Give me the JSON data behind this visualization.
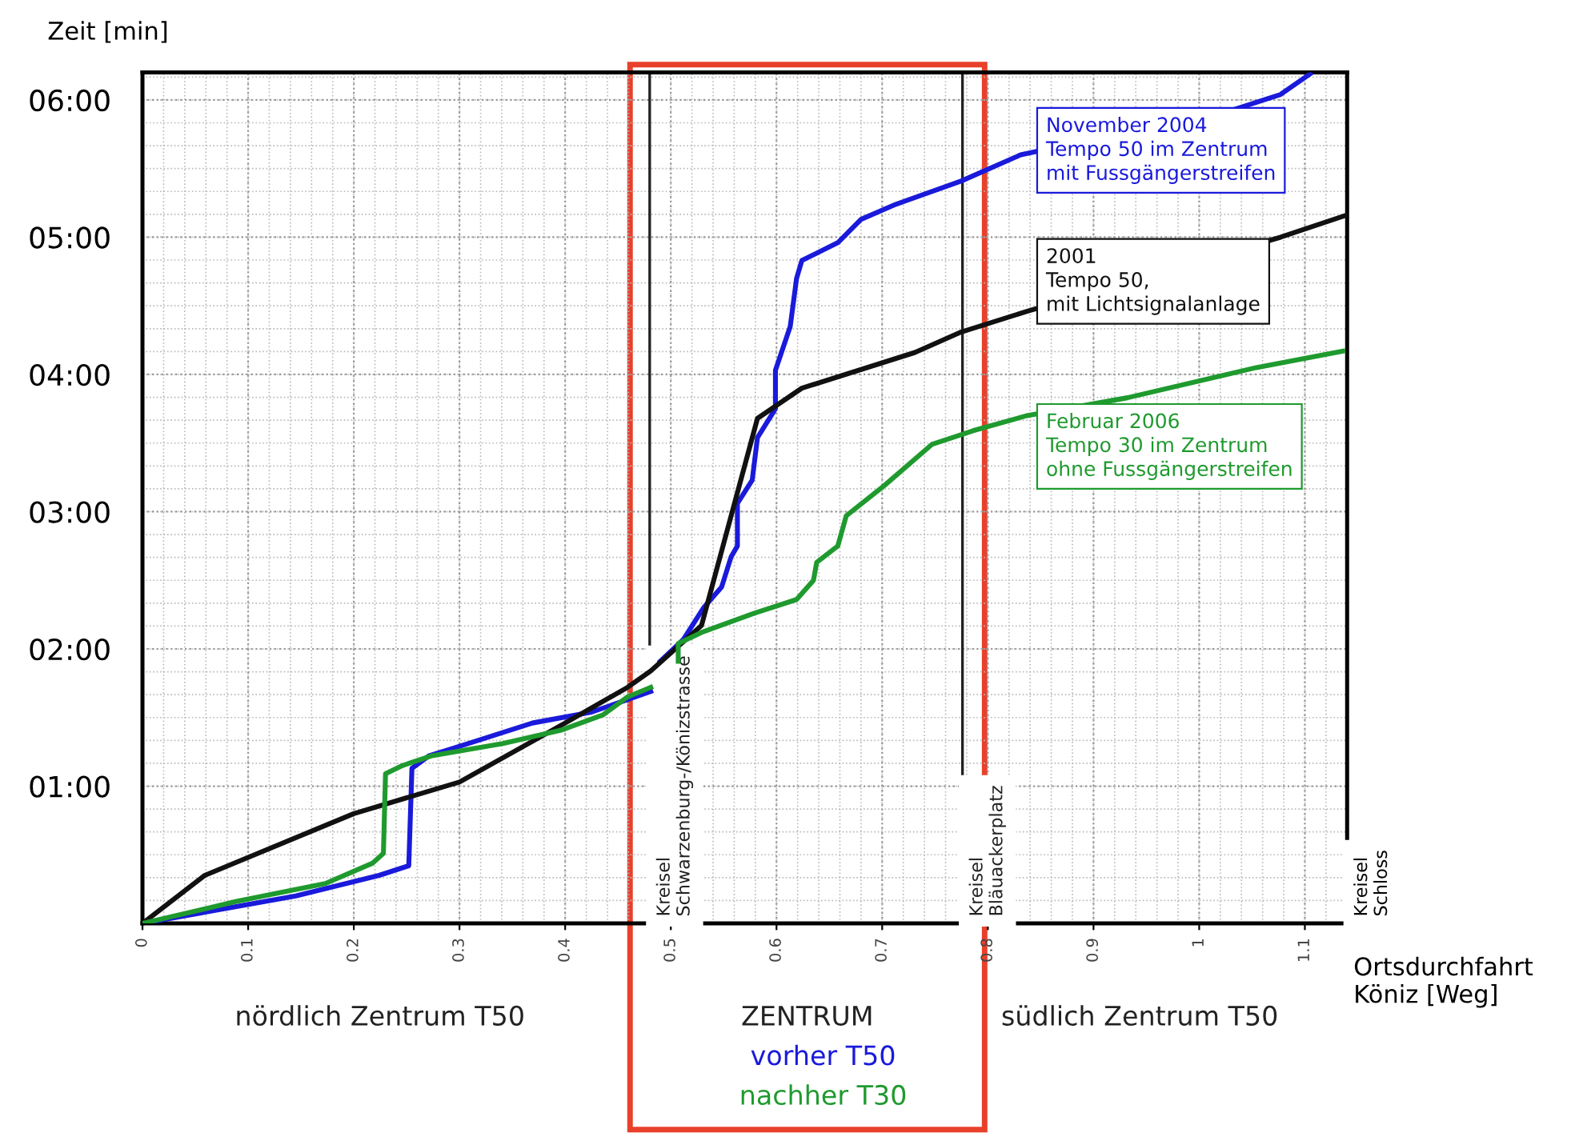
{
  "chart_data": {
    "type": "line",
    "ylabel": "Zeit [min]",
    "xlabel": "Ortsdurchfahrt\nKöniz [Weg]",
    "xlim": [
      0,
      1.14
    ],
    "ylim": [
      0,
      6.2
    ],
    "xticks": [
      0,
      0.1,
      0.2,
      0.3,
      0.4,
      0.5,
      0.6,
      0.7,
      0.8,
      0.9,
      1,
      1.1
    ],
    "yticks": [
      {
        "value": 0,
        "label": null
      },
      {
        "value": 1,
        "label": "01:00"
      },
      {
        "value": 2,
        "label": "02:00"
      },
      {
        "value": 3,
        "label": "03:00"
      },
      {
        "value": 4,
        "label": "04:00"
      },
      {
        "value": 5,
        "label": "05:00"
      },
      {
        "value": 6,
        "label": "06:00"
      }
    ],
    "grid": true,
    "legend": false,
    "marker": "none",
    "line_style": "solid",
    "series": [
      {
        "name": "November 2004\nTempo 50 im Zentrum\nmit Fussgängerstreifen",
        "color": "#1a1adb",
        "x": [
          0,
          0.145,
          0.224,
          0.252,
          0.255,
          0.271,
          0.308,
          0.369,
          0.425,
          0.459,
          0.481,
          0.485,
          0.49,
          0.512,
          0.531,
          0.548,
          0.557,
          0.563,
          0.563,
          0.577,
          0.582,
          0.599,
          0.599,
          0.613,
          0.619,
          0.624,
          0.658,
          0.68,
          0.713,
          0.775,
          0.831,
          1.033,
          1.077,
          1.105
        ],
        "values": [
          0,
          0.2,
          0.35,
          0.42,
          1.13,
          1.22,
          1.31,
          1.46,
          1.54,
          1.63,
          1.69,
          null,
          1.91,
          2.07,
          2.3,
          2.45,
          2.67,
          2.75,
          3.06,
          3.23,
          3.54,
          3.75,
          4.03,
          4.35,
          4.7,
          4.83,
          4.96,
          5.13,
          5.24,
          5.41,
          5.6,
          5.93,
          6.04,
          6.19
        ]
      },
      {
        "name": "2001\nTempo 50,\nmit Lichtsignalanlage",
        "color": "#111111",
        "x": [
          0,
          0.059,
          0.2,
          0.3,
          0.4,
          0.459,
          0.481,
          0.529,
          0.582,
          0.624,
          0.731,
          0.775,
          0.837,
          1.077,
          1.139
        ],
        "values": [
          0,
          0.35,
          0.8,
          1.03,
          1.46,
          1.72,
          1.84,
          2.17,
          3.68,
          3.9,
          4.16,
          4.31,
          4.46,
          5.0,
          5.16
        ]
      },
      {
        "name": "Februar 2006\nTempo 30 im Zentrum\nohne Fussgängerstreifen",
        "color": "#1f9a2e",
        "x": [
          0,
          0.089,
          0.173,
          0.218,
          0.228,
          0.23,
          0.246,
          0.273,
          0.341,
          0.397,
          0.436,
          0.459,
          0.481,
          0.495,
          0.507,
          0.507,
          0.529,
          0.579,
          0.619,
          0.635,
          0.638,
          0.658,
          0.666,
          0.702,
          0.747,
          0.786,
          0.837,
          0.932,
          1.054,
          1.136
        ],
        "values": [
          0,
          0.16,
          0.29,
          0.44,
          0.51,
          1.09,
          1.15,
          1.22,
          1.31,
          1.41,
          1.52,
          1.65,
          1.72,
          null,
          1.91,
          2.04,
          2.12,
          2.26,
          2.36,
          2.5,
          2.63,
          2.75,
          2.97,
          3.19,
          3.49,
          3.59,
          3.7,
          3.83,
          4.05,
          4.17
        ]
      }
    ],
    "ref_lines": [
      {
        "axis": "x",
        "value": 0.48,
        "label": "Kreisel\nSchwarzenburg-/Könizstrasse",
        "color": "#222222"
      },
      {
        "axis": "x",
        "value": 0.776,
        "label": "Kreisel\nBläuackerplatz",
        "color": "#222222"
      },
      {
        "axis": "x",
        "value": 1.14,
        "label": "Kreisel\nSchloss",
        "color": "#000000"
      }
    ],
    "annotations": [
      "nördlich Zentrum T50",
      "vorher T50",
      "nachher T30",
      "südlich Zentrum T50",
      "ZENTRUM"
    ]
  }
}
